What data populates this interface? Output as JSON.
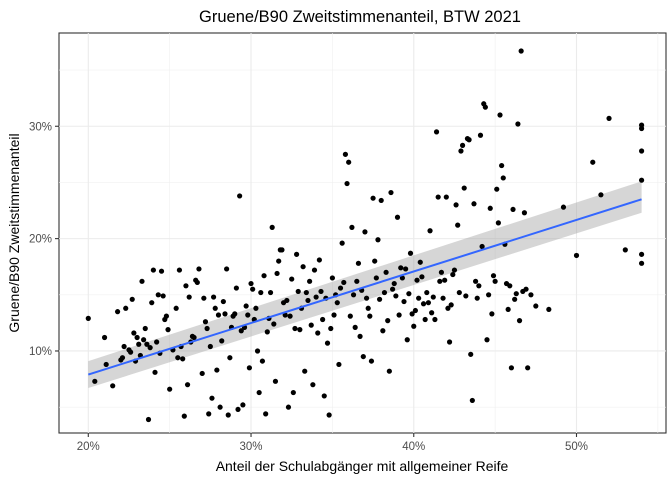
{
  "chart_data": {
    "type": "scatter",
    "title": "Gruene/B90 Zweitstimmenanteil, BTW 2021",
    "xlabel": "Anteil der Schulabgänger mit allgemeiner Reife",
    "ylabel": "Gruene/B90 Zweitstimmenanteil",
    "xlim": [
      0.182,
      0.555
    ],
    "ylim": [
      0.027,
      0.383
    ],
    "x_ticks": [
      0.2,
      0.3,
      0.4,
      0.5
    ],
    "x_tick_labels": [
      "20%",
      "30%",
      "40%",
      "50%"
    ],
    "y_ticks": [
      0.1,
      0.2,
      0.3
    ],
    "y_tick_labels": [
      "10%",
      "20%",
      "30%"
    ],
    "grid": true,
    "smooth": {
      "method": "linear",
      "x": [
        0.2,
        0.54
      ],
      "y": [
        0.079,
        0.235
      ],
      "band_lower": [
        0.067,
        0.223
      ],
      "band_upper": [
        0.091,
        0.251
      ]
    },
    "points": [
      [
        0.2,
        0.129
      ],
      [
        0.204,
        0.073
      ],
      [
        0.21,
        0.112
      ],
      [
        0.211,
        0.088
      ],
      [
        0.215,
        0.069
      ],
      [
        0.218,
        0.135
      ],
      [
        0.22,
        0.092
      ],
      [
        0.221,
        0.094
      ],
      [
        0.222,
        0.104
      ],
      [
        0.223,
        0.138
      ],
      [
        0.225,
        0.101
      ],
      [
        0.226,
        0.099
      ],
      [
        0.227,
        0.146
      ],
      [
        0.228,
        0.116
      ],
      [
        0.229,
        0.091
      ],
      [
        0.23,
        0.112
      ],
      [
        0.231,
        0.106
      ],
      [
        0.232,
        0.096
      ],
      [
        0.233,
        0.162
      ],
      [
        0.234,
        0.11
      ],
      [
        0.235,
        0.12
      ],
      [
        0.236,
        0.106
      ],
      [
        0.237,
        0.039
      ],
      [
        0.238,
        0.103
      ],
      [
        0.239,
        0.143
      ],
      [
        0.24,
        0.172
      ],
      [
        0.241,
        0.081
      ],
      [
        0.242,
        0.108
      ],
      [
        0.243,
        0.15
      ],
      [
        0.244,
        0.098
      ],
      [
        0.245,
        0.171
      ],
      [
        0.246,
        0.149
      ],
      [
        0.247,
        0.128
      ],
      [
        0.248,
        0.131
      ],
      [
        0.249,
        0.119
      ],
      [
        0.25,
        0.066
      ],
      [
        0.252,
        0.101
      ],
      [
        0.254,
        0.138
      ],
      [
        0.255,
        0.094
      ],
      [
        0.256,
        0.172
      ],
      [
        0.257,
        0.104
      ],
      [
        0.258,
        0.093
      ],
      [
        0.259,
        0.042
      ],
      [
        0.26,
        0.158
      ],
      [
        0.261,
        0.07
      ],
      [
        0.262,
        0.148
      ],
      [
        0.263,
        0.108
      ],
      [
        0.264,
        0.113
      ],
      [
        0.265,
        0.112
      ],
      [
        0.266,
        0.163
      ],
      [
        0.267,
        0.161
      ],
      [
        0.268,
        0.173
      ],
      [
        0.27,
        0.08
      ],
      [
        0.271,
        0.147
      ],
      [
        0.272,
        0.126
      ],
      [
        0.273,
        0.12
      ],
      [
        0.274,
        0.044
      ],
      [
        0.275,
        0.104
      ],
      [
        0.276,
        0.058
      ],
      [
        0.277,
        0.148
      ],
      [
        0.278,
        0.138
      ],
      [
        0.279,
        0.083
      ],
      [
        0.28,
        0.132
      ],
      [
        0.281,
        0.05
      ],
      [
        0.282,
        0.109
      ],
      [
        0.283,
        0.144
      ],
      [
        0.284,
        0.133
      ],
      [
        0.285,
        0.173
      ],
      [
        0.286,
        0.043
      ],
      [
        0.287,
        0.094
      ],
      [
        0.288,
        0.121
      ],
      [
        0.289,
        0.131
      ],
      [
        0.29,
        0.133
      ],
      [
        0.291,
        0.156
      ],
      [
        0.292,
        0.048
      ],
      [
        0.293,
        0.238
      ],
      [
        0.294,
        0.118
      ],
      [
        0.295,
        0.052
      ],
      [
        0.296,
        0.121
      ],
      [
        0.297,
        0.14
      ],
      [
        0.298,
        0.132
      ],
      [
        0.299,
        0.085
      ],
      [
        0.3,
        0.16
      ],
      [
        0.301,
        0.155
      ],
      [
        0.302,
        0.128
      ],
      [
        0.303,
        0.138
      ],
      [
        0.304,
        0.1
      ],
      [
        0.305,
        0.063
      ],
      [
        0.306,
        0.152
      ],
      [
        0.307,
        0.091
      ],
      [
        0.308,
        0.167
      ],
      [
        0.309,
        0.044
      ],
      [
        0.31,
        0.117
      ],
      [
        0.311,
        0.129
      ],
      [
        0.312,
        0.152
      ],
      [
        0.313,
        0.21
      ],
      [
        0.314,
        0.124
      ],
      [
        0.315,
        0.073
      ],
      [
        0.316,
        0.169
      ],
      [
        0.317,
        0.18
      ],
      [
        0.318,
        0.19
      ],
      [
        0.319,
        0.19
      ],
      [
        0.32,
        0.143
      ],
      [
        0.321,
        0.132
      ],
      [
        0.322,
        0.145
      ],
      [
        0.323,
        0.05
      ],
      [
        0.324,
        0.131
      ],
      [
        0.325,
        0.164
      ],
      [
        0.326,
        0.063
      ],
      [
        0.327,
        0.12
      ],
      [
        0.328,
        0.186
      ],
      [
        0.329,
        0.153
      ],
      [
        0.33,
        0.119
      ],
      [
        0.331,
        0.138
      ],
      [
        0.332,
        0.175
      ],
      [
        0.333,
        0.082
      ],
      [
        0.334,
        0.152
      ],
      [
        0.335,
        0.145
      ],
      [
        0.336,
        0.162
      ],
      [
        0.337,
        0.123
      ],
      [
        0.338,
        0.07
      ],
      [
        0.339,
        0.172
      ],
      [
        0.34,
        0.148
      ],
      [
        0.341,
        0.116
      ],
      [
        0.342,
        0.181
      ],
      [
        0.343,
        0.153
      ],
      [
        0.344,
        0.128
      ],
      [
        0.345,
        0.06
      ],
      [
        0.346,
        0.147
      ],
      [
        0.347,
        0.107
      ],
      [
        0.348,
        0.043
      ],
      [
        0.349,
        0.12
      ],
      [
        0.35,
        0.165
      ],
      [
        0.351,
        0.132
      ],
      [
        0.352,
        0.15
      ],
      [
        0.353,
        0.143
      ],
      [
        0.354,
        0.088
      ],
      [
        0.355,
        0.156
      ],
      [
        0.356,
        0.196
      ],
      [
        0.357,
        0.161
      ],
      [
        0.358,
        0.275
      ],
      [
        0.359,
        0.249
      ],
      [
        0.36,
        0.268
      ],
      [
        0.361,
        0.131
      ],
      [
        0.362,
        0.21
      ],
      [
        0.363,
        0.15
      ],
      [
        0.364,
        0.121
      ],
      [
        0.365,
        0.162
      ],
      [
        0.366,
        0.178
      ],
      [
        0.367,
        0.113
      ],
      [
        0.368,
        0.154
      ],
      [
        0.369,
        0.095
      ],
      [
        0.37,
        0.206
      ],
      [
        0.371,
        0.147
      ],
      [
        0.372,
        0.138
      ],
      [
        0.373,
        0.131
      ],
      [
        0.374,
        0.091
      ],
      [
        0.375,
        0.236
      ],
      [
        0.376,
        0.18
      ],
      [
        0.377,
        0.165
      ],
      [
        0.378,
        0.199
      ],
      [
        0.379,
        0.146
      ],
      [
        0.38,
        0.234
      ],
      [
        0.381,
        0.118
      ],
      [
        0.382,
        0.152
      ],
      [
        0.383,
        0.17
      ],
      [
        0.384,
        0.127
      ],
      [
        0.385,
        0.082
      ],
      [
        0.386,
        0.241
      ],
      [
        0.387,
        0.155
      ],
      [
        0.388,
        0.16
      ],
      [
        0.389,
        0.149
      ],
      [
        0.39,
        0.219
      ],
      [
        0.391,
        0.132
      ],
      [
        0.392,
        0.174
      ],
      [
        0.393,
        0.165
      ],
      [
        0.394,
        0.144
      ],
      [
        0.395,
        0.173
      ],
      [
        0.396,
        0.11
      ],
      [
        0.397,
        0.151
      ],
      [
        0.398,
        0.187
      ],
      [
        0.399,
        0.133
      ],
      [
        0.4,
        0.122
      ],
      [
        0.401,
        0.136
      ],
      [
        0.402,
        0.163
      ],
      [
        0.403,
        0.147
      ],
      [
        0.404,
        0.179
      ],
      [
        0.405,
        0.166
      ],
      [
        0.406,
        0.142
      ],
      [
        0.407,
        0.128
      ],
      [
        0.408,
        0.152
      ],
      [
        0.409,
        0.143
      ],
      [
        0.41,
        0.207
      ],
      [
        0.411,
        0.134
      ],
      [
        0.412,
        0.148
      ],
      [
        0.413,
        0.128
      ],
      [
        0.414,
        0.295
      ],
      [
        0.415,
        0.237
      ],
      [
        0.416,
        0.162
      ],
      [
        0.417,
        0.17
      ],
      [
        0.418,
        0.147
      ],
      [
        0.419,
        0.163
      ],
      [
        0.42,
        0.237
      ],
      [
        0.421,
        0.138
      ],
      [
        0.422,
        0.108
      ],
      [
        0.423,
        0.141
      ],
      [
        0.424,
        0.168
      ],
      [
        0.425,
        0.172
      ],
      [
        0.426,
        0.23
      ],
      [
        0.427,
        0.212
      ],
      [
        0.428,
        0.152
      ],
      [
        0.429,
        0.278
      ],
      [
        0.43,
        0.283
      ],
      [
        0.431,
        0.245
      ],
      [
        0.432,
        0.149
      ],
      [
        0.433,
        0.289
      ],
      [
        0.434,
        0.288
      ],
      [
        0.435,
        0.097
      ],
      [
        0.436,
        0.056
      ],
      [
        0.437,
        0.231
      ],
      [
        0.438,
        0.162
      ],
      [
        0.439,
        0.147
      ],
      [
        0.44,
        0.158
      ],
      [
        0.441,
        0.292
      ],
      [
        0.442,
        0.193
      ],
      [
        0.443,
        0.32
      ],
      [
        0.444,
        0.317
      ],
      [
        0.445,
        0.11
      ],
      [
        0.446,
        0.15
      ],
      [
        0.447,
        0.227
      ],
      [
        0.448,
        0.133
      ],
      [
        0.449,
        0.167
      ],
      [
        0.45,
        0.162
      ],
      [
        0.451,
        0.244
      ],
      [
        0.452,
        0.214
      ],
      [
        0.453,
        0.31
      ],
      [
        0.454,
        0.265
      ],
      [
        0.455,
        0.254
      ],
      [
        0.456,
        0.195
      ],
      [
        0.457,
        0.16
      ],
      [
        0.458,
        0.137
      ],
      [
        0.459,
        0.158
      ],
      [
        0.46,
        0.085
      ],
      [
        0.461,
        0.226
      ],
      [
        0.462,
        0.146
      ],
      [
        0.463,
        0.151
      ],
      [
        0.464,
        0.302
      ],
      [
        0.465,
        0.127
      ],
      [
        0.466,
        0.367
      ],
      [
        0.467,
        0.153
      ],
      [
        0.468,
        0.223
      ],
      [
        0.469,
        0.155
      ],
      [
        0.47,
        0.085
      ],
      [
        0.472,
        0.15
      ],
      [
        0.475,
        0.14
      ],
      [
        0.483,
        0.137
      ],
      [
        0.492,
        0.228
      ],
      [
        0.5,
        0.185
      ],
      [
        0.51,
        0.268
      ],
      [
        0.515,
        0.239
      ],
      [
        0.52,
        0.307
      ],
      [
        0.53,
        0.19
      ],
      [
        0.54,
        0.252
      ],
      [
        0.54,
        0.301
      ],
      [
        0.54,
        0.298
      ],
      [
        0.54,
        0.278
      ],
      [
        0.54,
        0.186
      ],
      [
        0.54,
        0.178
      ]
    ]
  }
}
